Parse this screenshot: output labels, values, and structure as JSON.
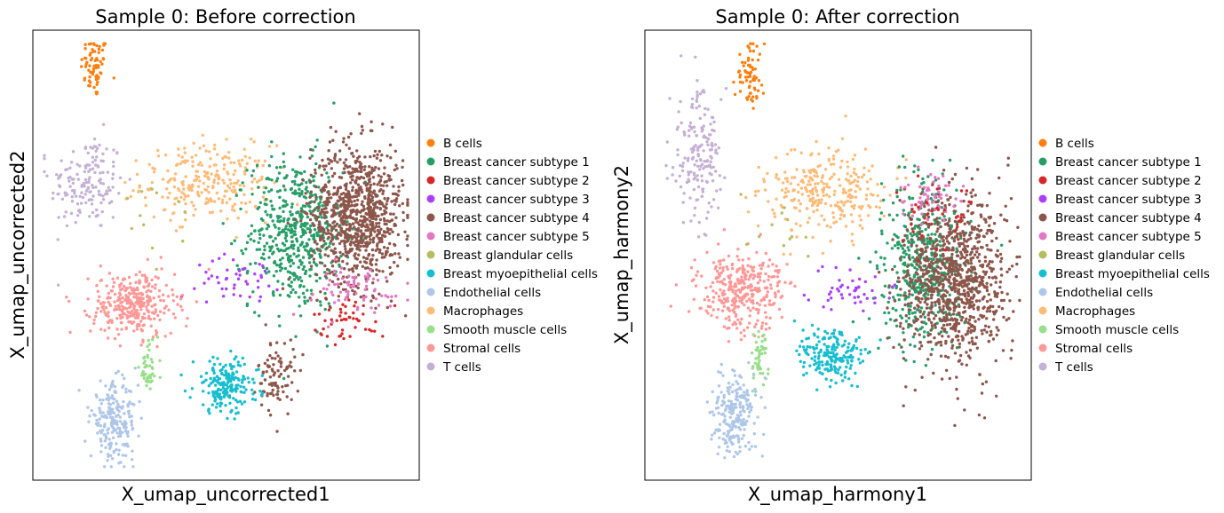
{
  "legend": {
    "entries": [
      {
        "label": "B cells",
        "color": "#ff7f0e"
      },
      {
        "label": "Breast cancer subtype 1",
        "color": "#279e68"
      },
      {
        "label": "Breast cancer subtype 2",
        "color": "#d62728"
      },
      {
        "label": "Breast cancer subtype 3",
        "color": "#aa40fc"
      },
      {
        "label": "Breast cancer subtype 4",
        "color": "#8c564b"
      },
      {
        "label": "Breast cancer subtype 5",
        "color": "#e377c2"
      },
      {
        "label": "Breast glandular cells",
        "color": "#b5bd61"
      },
      {
        "label": "Breast myoepithelial cells",
        "color": "#17becf"
      },
      {
        "label": "Endothelial cells",
        "color": "#aec7e8"
      },
      {
        "label": "Macrophages",
        "color": "#ffbb78"
      },
      {
        "label": "Smooth muscle cells",
        "color": "#98df8a"
      },
      {
        "label": "Stromal cells",
        "color": "#ff9896"
      },
      {
        "label": "T cells",
        "color": "#c5b0d5"
      }
    ]
  },
  "chart_data": [
    {
      "type": "scatter",
      "title": "Sample 0: Before correction",
      "xlabel": "X_umap_uncorrected1",
      "ylabel": "X_umap_uncorrected2",
      "ticks": "none",
      "grid": false,
      "legend_placement": "right",
      "clusters": [
        {
          "name": "B cells",
          "center": [
            0.16,
            0.92
          ],
          "spread": [
            0.03,
            0.06
          ],
          "count": 70
        },
        {
          "name": "T cells",
          "center": [
            0.14,
            0.66
          ],
          "spread": [
            0.08,
            0.09
          ],
          "count": 160
        },
        {
          "name": "Macrophages",
          "center": [
            0.45,
            0.66
          ],
          "spread": [
            0.14,
            0.07
          ],
          "count": 260
        },
        {
          "name": "Breast cancer subtype 1",
          "center": [
            0.68,
            0.55
          ],
          "spread": [
            0.1,
            0.14
          ],
          "count": 520
        },
        {
          "name": "Breast cancer subtype 4",
          "center": [
            0.84,
            0.59
          ],
          "spread": [
            0.1,
            0.13
          ],
          "count": 900
        },
        {
          "name": "Breast cancer subtype 4",
          "center": [
            0.63,
            0.23
          ],
          "spread": [
            0.04,
            0.07
          ],
          "count": 90
        },
        {
          "name": "Breast cancer subtype 2",
          "center": [
            0.82,
            0.36
          ],
          "spread": [
            0.08,
            0.04
          ],
          "count": 50
        },
        {
          "name": "Breast cancer subtype 5",
          "center": [
            0.82,
            0.42
          ],
          "spread": [
            0.14,
            0.05
          ],
          "count": 70
        },
        {
          "name": "Breast cancer subtype 3",
          "center": [
            0.53,
            0.45
          ],
          "spread": [
            0.09,
            0.04
          ],
          "count": 45
        },
        {
          "name": "Stromal cells",
          "center": [
            0.26,
            0.39
          ],
          "spread": [
            0.09,
            0.06
          ],
          "count": 330
        },
        {
          "name": "Breast myoepithelial cells",
          "center": [
            0.5,
            0.21
          ],
          "spread": [
            0.07,
            0.05
          ],
          "count": 200
        },
        {
          "name": "Smooth muscle cells",
          "center": [
            0.3,
            0.25
          ],
          "spread": [
            0.02,
            0.05
          ],
          "count": 45
        },
        {
          "name": "Endothelial cells",
          "center": [
            0.21,
            0.13
          ],
          "spread": [
            0.05,
            0.07
          ],
          "count": 220
        },
        {
          "name": "Breast glandular cells",
          "center": [
            0.33,
            0.55
          ],
          "spread": [
            0.1,
            0.08
          ],
          "count": 12
        }
      ]
    },
    {
      "type": "scatter",
      "title": "Sample 0: After correction",
      "xlabel": "X_umap_harmony1",
      "ylabel": "X_umap_harmony2",
      "ticks": "none",
      "grid": false,
      "legend_placement": "right",
      "clusters": [
        {
          "name": "B cells",
          "center": [
            0.27,
            0.9
          ],
          "spread": [
            0.03,
            0.06
          ],
          "count": 70
        },
        {
          "name": "T cells",
          "center": [
            0.14,
            0.72
          ],
          "spread": [
            0.06,
            0.12
          ],
          "count": 180
        },
        {
          "name": "Macrophages",
          "center": [
            0.47,
            0.64
          ],
          "spread": [
            0.13,
            0.08
          ],
          "count": 280
        },
        {
          "name": "Breast cancer subtype 1",
          "center": [
            0.72,
            0.48
          ],
          "spread": [
            0.09,
            0.15
          ],
          "count": 480
        },
        {
          "name": "Breast cancer subtype 4",
          "center": [
            0.8,
            0.45
          ],
          "spread": [
            0.11,
            0.16
          ],
          "count": 950
        },
        {
          "name": "Breast cancer subtype 5",
          "center": [
            0.74,
            0.62
          ],
          "spread": [
            0.07,
            0.05
          ],
          "count": 60
        },
        {
          "name": "Breast cancer subtype 2",
          "center": [
            0.75,
            0.58
          ],
          "spread": [
            0.08,
            0.06
          ],
          "count": 40
        },
        {
          "name": "Breast cancer subtype 3",
          "center": [
            0.53,
            0.42
          ],
          "spread": [
            0.09,
            0.04
          ],
          "count": 45
        },
        {
          "name": "Stromal cells",
          "center": [
            0.25,
            0.42
          ],
          "spread": [
            0.09,
            0.07
          ],
          "count": 330
        },
        {
          "name": "Breast myoepithelial cells",
          "center": [
            0.48,
            0.28
          ],
          "spread": [
            0.07,
            0.05
          ],
          "count": 190
        },
        {
          "name": "Smooth muscle cells",
          "center": [
            0.3,
            0.28
          ],
          "spread": [
            0.02,
            0.05
          ],
          "count": 45
        },
        {
          "name": "Endothelial cells",
          "center": [
            0.23,
            0.15
          ],
          "spread": [
            0.05,
            0.08
          ],
          "count": 220
        },
        {
          "name": "Breast glandular cells",
          "center": [
            0.34,
            0.55
          ],
          "spread": [
            0.1,
            0.08
          ],
          "count": 12
        }
      ]
    }
  ]
}
